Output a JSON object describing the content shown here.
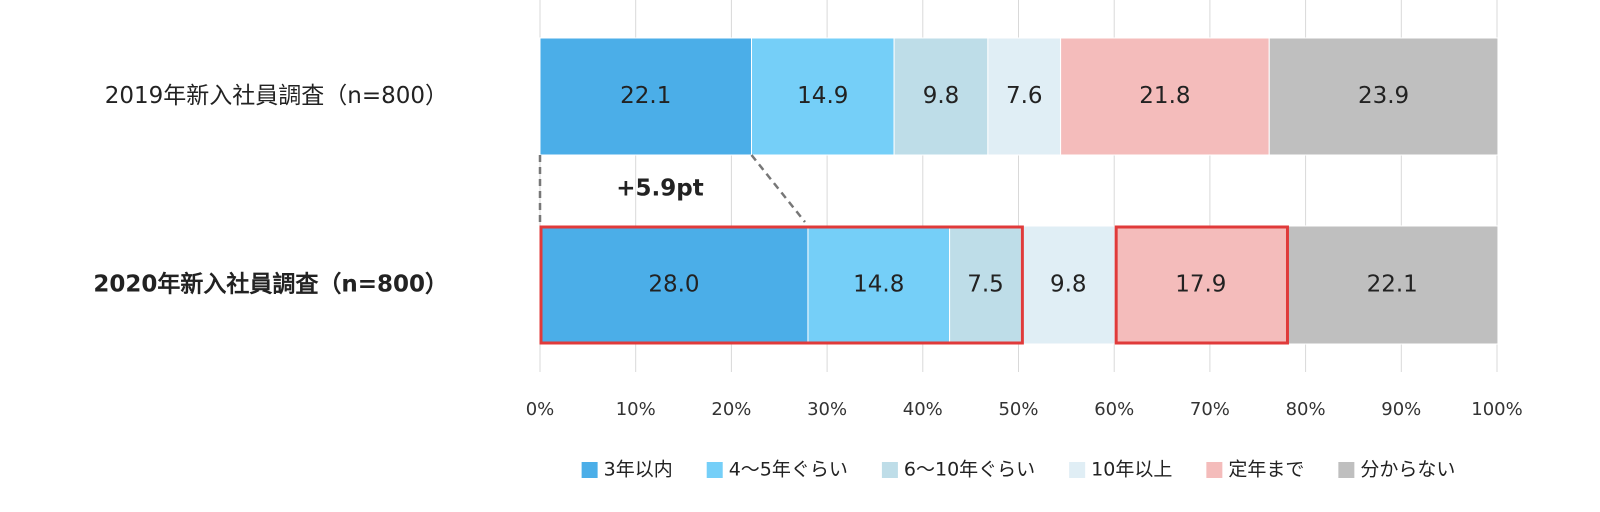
{
  "chart_data": {
    "type": "stacked-barh",
    "categories": [
      "2019年新入社員調査（n=800）",
      "2020年新入社員調査（n=800）"
    ],
    "series": [
      {
        "name": "3年以内",
        "color": "#4baee8",
        "values": [
          22.1,
          28.0
        ],
        "value_labels": [
          "22.1",
          "28.0"
        ]
      },
      {
        "name": "4～5年ぐらい",
        "color": "#75cff8",
        "values": [
          14.9,
          14.8
        ]
      },
      {
        "name": "6～10年ぐらい",
        "color": "#bedde8",
        "values": [
          9.8,
          7.5
        ]
      },
      {
        "name": "10年以上",
        "color": "#e0eef5",
        "values": [
          7.6,
          9.8
        ]
      },
      {
        "name": "定年まで",
        "color": "#f4bcbb",
        "values": [
          21.8,
          17.9
        ]
      },
      {
        "name": "分からない",
        "color": "#bfbfbf",
        "values": [
          23.9,
          22.1
        ]
      }
    ],
    "xlim": [
      0,
      100
    ],
    "xticks": [
      {
        "value": 0,
        "label": "0%"
      },
      {
        "value": 10,
        "label": "10%"
      },
      {
        "value": 20,
        "label": "20%"
      },
      {
        "value": 30,
        "label": "30%"
      },
      {
        "value": 40,
        "label": "40%"
      },
      {
        "value": 50,
        "label": "50%"
      },
      {
        "value": 60,
        "label": "60%"
      },
      {
        "value": 70,
        "label": "70%"
      },
      {
        "value": 80,
        "label": "80%"
      },
      {
        "value": 90,
        "label": "90%"
      },
      {
        "value": 100,
        "label": "100%"
      }
    ],
    "grid": true,
    "legend": "bottom",
    "annotation": "+5.9pt"
  }
}
